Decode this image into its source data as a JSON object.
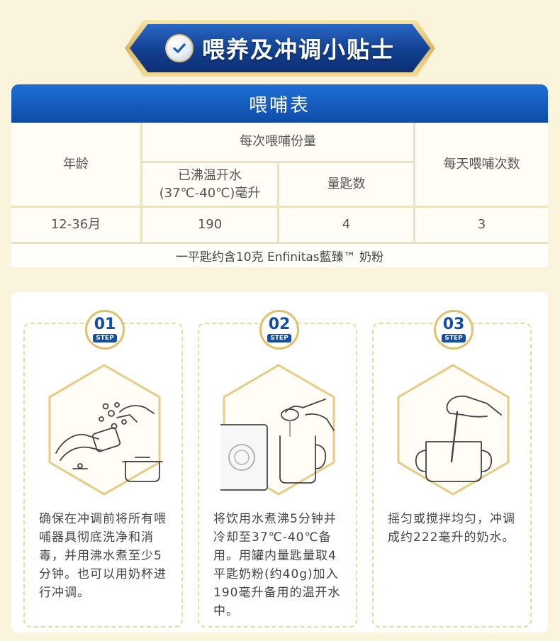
{
  "banner": {
    "title": "喂养及冲调小贴士",
    "icon": "check-icon"
  },
  "table": {
    "title": "喂哺表",
    "col_age": "年龄",
    "col_portion": "每次喂哺份量",
    "col_water": "已沸温开水\n(37℃-40℃)毫升",
    "col_scoops": "量匙数",
    "col_daily": "每天喂哺次数",
    "row": {
      "age": "12-36月",
      "water": "190",
      "scoops": "4",
      "daily": "3"
    },
    "note": "一平匙约含10克 Enfinitas藍臻™ 奶粉"
  },
  "steps": [
    {
      "num": "01",
      "word": "STEP",
      "text": "确保在冲调前将所有喂哺器具彻底洗净和消毒，并用沸水煮至少5分钟。也可以用奶杯进行冲调。"
    },
    {
      "num": "02",
      "word": "STEP",
      "text": "将饮用水煮沸5分钟并冷却至37℃-40℃备用。用罐内量匙量取4平匙奶粉(约40g)加入190毫升备用的温开水中。",
      "can_label": "Enfinitas藍臻"
    },
    {
      "num": "03",
      "word": "STEP",
      "text": "摇匀或搅拌均匀，冲调成约222毫升的奶水。"
    }
  ],
  "colors": {
    "brand_blue": "#124ea6",
    "gold": "#e0c06a",
    "background": "#fbf4dc"
  }
}
